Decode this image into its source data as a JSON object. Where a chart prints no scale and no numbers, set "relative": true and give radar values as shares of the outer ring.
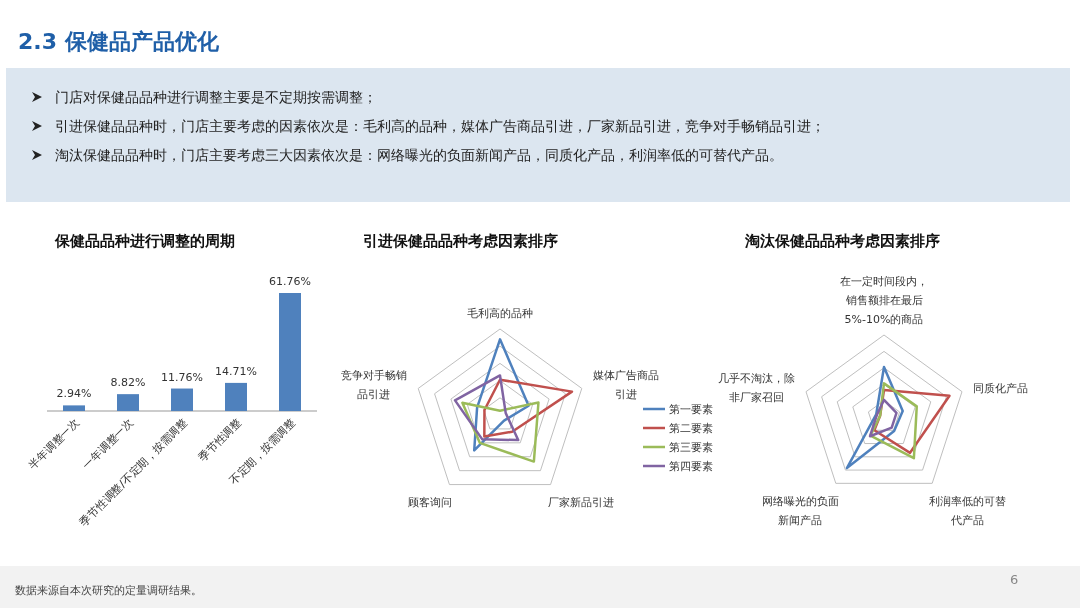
{
  "chart_data": [
    {
      "type": "other",
      "title": "2.3 保健品产品优化",
      "annotations": [
        "门店对保健品品种进行调整主要是不定期按需调整；",
        "引进保健品品种时，门店主要考虑的因素依次是：毛利高的品种，媒体广告商品引进，厂家新品引进，竞争对手畅销品引进；",
        "淘汰保健品品种时，门店主要考虑三大因素依次是：网络曝光的负面新闻产品，同质化产品，利润率低的可替代产品。",
        "数据来源自本次研究的定量调研结果。",
        "6"
      ]
    },
    {
      "type": "bar",
      "title": "保健品品种进行调整的周期",
      "categories": [
        "半年调整一次",
        "一年调整一次",
        "季节性调整/不定期，按需调整",
        "季节性调整",
        "不定期，按需调整"
      ],
      "values": [
        2.94,
        8.82,
        11.76,
        14.71,
        61.76
      ],
      "value_labels": [
        "2.94%",
        "8.82%",
        "11.76%",
        "14.71%",
        "61.76%"
      ],
      "color": "#4f81bd"
    },
    {
      "type": "radar",
      "title": "引进保健品品种考虑因素排序",
      "categories": [
        "毛利高的品种",
        "媒体广告商品引进",
        "厂家新品引进",
        "顾客询问",
        "竞争对手畅销品引进"
      ],
      "relative": true,
      "grid": true,
      "legend": "right",
      "series": [
        {
          "name": "第一要素",
          "color": "#4f81bd",
          "values": [
            0.88,
            0.35,
            0.08,
            0.51,
            0.28
          ]
        },
        {
          "name": "第二要素",
          "color": "#c0504d",
          "values": [
            0.41,
            0.88,
            0.24,
            0.31,
            0.19
          ]
        },
        {
          "name": "第三要素",
          "color": "#9bbb59",
          "values": [
            0.05,
            0.47,
            0.67,
            0.4,
            0.46
          ]
        },
        {
          "name": "第四要素",
          "color": "#8064a2",
          "values": [
            0.46,
            0.07,
            0.36,
            0.35,
            0.55
          ]
        }
      ]
    },
    {
      "type": "radar",
      "title": "淘汰保健品品种考虑因素排序",
      "categories": [
        "在一定时间段内，销售额排在最后5%-10%的商品",
        "同质化产品",
        "利润率低的可替代产品",
        "网络曝光的负面新闻产品",
        "几乎不淘汰，除非厂家召回"
      ],
      "relative": true,
      "grid": true,
      "series": [
        {
          "color": "#4f81bd",
          "values": [
            0.61,
            0.24,
            0.21,
            0.77,
            0.1
          ]
        },
        {
          "color": "#c0504d",
          "values": [
            0.33,
            0.84,
            0.54,
            0.2,
            0.05
          ]
        },
        {
          "color": "#9bbb59",
          "values": [
            0.41,
            0.42,
            0.62,
            0.28,
            0.05
          ]
        },
        {
          "color": "#8064a2",
          "values": [
            0.21,
            0.16,
            0.16,
            0.29,
            0.09
          ]
        }
      ]
    }
  ]
}
